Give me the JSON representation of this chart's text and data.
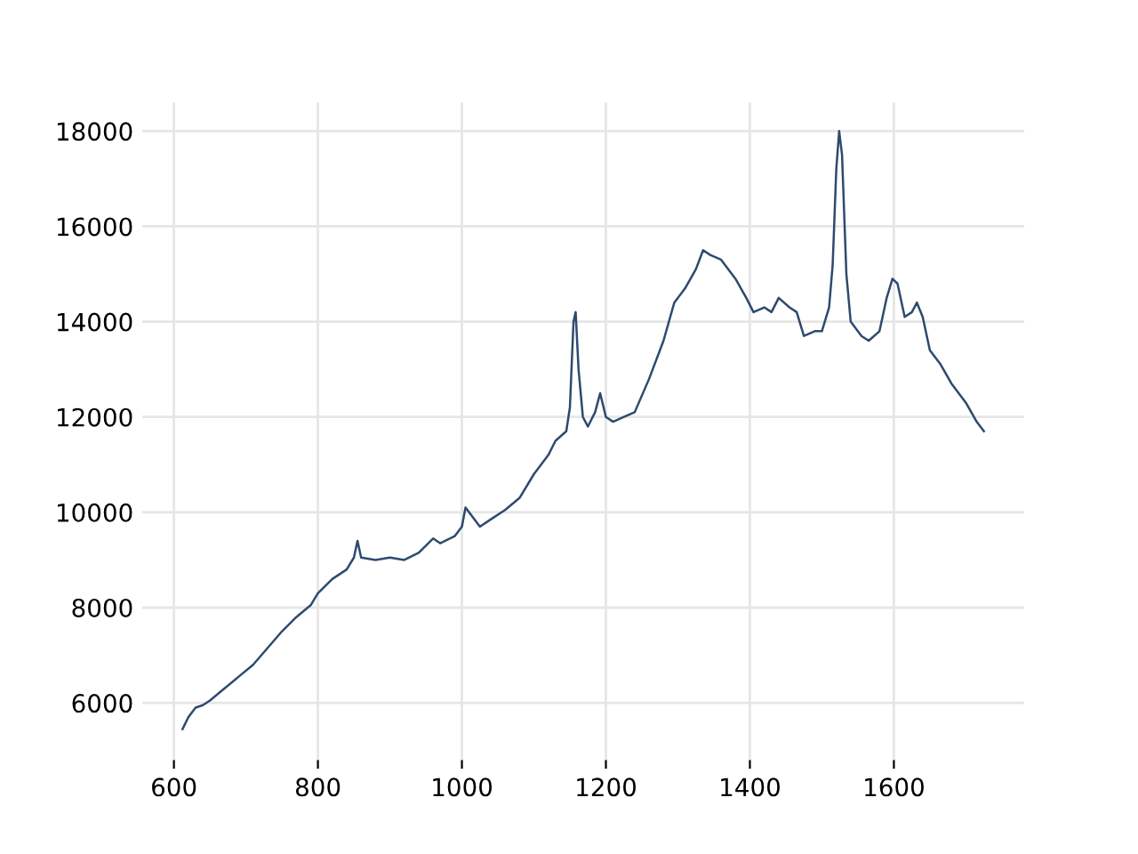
{
  "chart_data": {
    "type": "line",
    "x": [
      612,
      620,
      630,
      640,
      650,
      670,
      690,
      710,
      730,
      750,
      770,
      790,
      800,
      820,
      840,
      850,
      855,
      860,
      880,
      900,
      920,
      940,
      960,
      970,
      990,
      1000,
      1005,
      1015,
      1025,
      1040,
      1060,
      1080,
      1100,
      1120,
      1130,
      1145,
      1150,
      1155,
      1158,
      1162,
      1168,
      1175,
      1185,
      1192,
      1200,
      1210,
      1225,
      1240,
      1260,
      1280,
      1295,
      1310,
      1325,
      1335,
      1345,
      1360,
      1380,
      1395,
      1405,
      1420,
      1430,
      1440,
      1455,
      1465,
      1475,
      1490,
      1500,
      1510,
      1515,
      1520,
      1524,
      1528,
      1534,
      1540,
      1555,
      1565,
      1580,
      1590,
      1598,
      1605,
      1615,
      1625,
      1632,
      1640,
      1650,
      1665,
      1680,
      1700,
      1715,
      1725
    ],
    "series": [
      {
        "color": "#2e4a6e",
        "values": [
          5450,
          5700,
          5900,
          5950,
          6050,
          6300,
          6550,
          6800,
          7150,
          7500,
          7800,
          8050,
          8300,
          8600,
          8800,
          9050,
          9400,
          9050,
          9000,
          9050,
          9000,
          9150,
          9450,
          9350,
          9500,
          9700,
          10100,
          9900,
          9700,
          9850,
          10050,
          10300,
          10800,
          11200,
          11500,
          11700,
          12200,
          14000,
          14200,
          13000,
          12000,
          11800,
          12100,
          12500,
          12000,
          11900,
          12000,
          12100,
          12800,
          13600,
          14400,
          14700,
          15100,
          15500,
          15400,
          15300,
          14900,
          14500,
          14200,
          14300,
          14200,
          14500,
          14300,
          14200,
          13700,
          13800,
          13800,
          14300,
          15200,
          17200,
          18000,
          17500,
          15000,
          14000,
          13700,
          13600,
          13800,
          14500,
          14900,
          14800,
          14100,
          14200,
          14400,
          14100,
          13400,
          13100,
          12700,
          12300,
          11900,
          11700
        ]
      }
    ],
    "xlim": [
      556,
      1781
    ],
    "ylim": [
      4800,
      18600
    ],
    "xticks": [
      600,
      800,
      1000,
      1200,
      1400,
      1600
    ],
    "yticks": [
      6000,
      8000,
      10000,
      12000,
      14000,
      16000,
      18000
    ],
    "grid": true,
    "marker": "none",
    "line_style": "solid"
  }
}
